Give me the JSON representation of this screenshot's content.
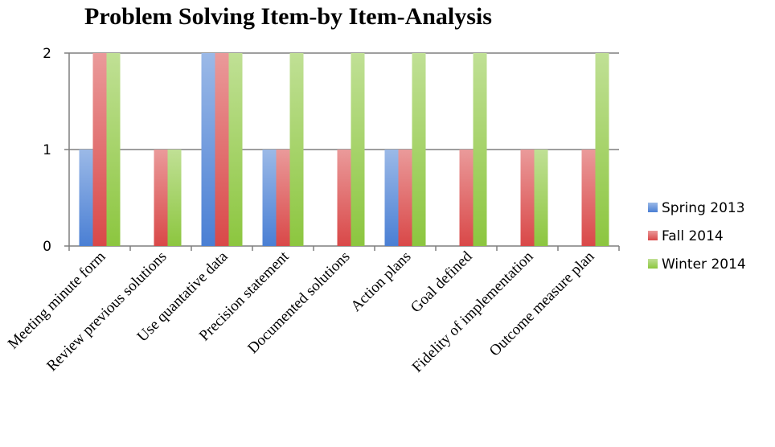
{
  "chart_data": {
    "type": "bar",
    "title": "Problem Solving Item-by Item-Analysis",
    "categories": [
      "Meeting minute form",
      "Review previous solutions",
      "Use quantative data",
      "Precision statement",
      "Documented solutions",
      "Action plans",
      "Goal defined",
      "Fidelity of implementation",
      "Outcome measure plan"
    ],
    "series": [
      {
        "name": "Spring 2013",
        "color": "#4a7fd4",
        "values": [
          1,
          0,
          2,
          1,
          0,
          1,
          0,
          0,
          0
        ]
      },
      {
        "name": "Fall 2014",
        "color": "#d94848",
        "values": [
          2,
          1,
          2,
          1,
          1,
          1,
          1,
          1,
          1
        ]
      },
      {
        "name": "Winter 2014",
        "color": "#8cc63f",
        "values": [
          2,
          1,
          2,
          2,
          2,
          2,
          2,
          1,
          2
        ]
      }
    ],
    "yticks": [
      "0",
      "1",
      "2"
    ],
    "ylim": [
      0,
      2
    ],
    "grid": true,
    "legend_position": "right"
  }
}
